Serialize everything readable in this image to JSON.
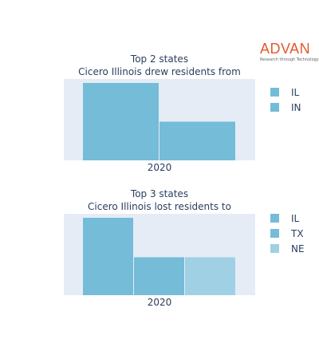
{
  "logo": {
    "name": "ADVAN",
    "tagline": "Research through Technology"
  },
  "colors": {
    "plot_bg": "#e5ecf6",
    "IL": "#74bcd8",
    "IN": "#74bcd8",
    "TX": "#74bcd8",
    "NE": "#9fd0e3"
  },
  "chart_data": [
    {
      "type": "bar",
      "title": [
        "Top 2 states",
        "Cicero Illinois drew residents from"
      ],
      "categories": [
        "2020"
      ],
      "series": [
        {
          "name": "IL",
          "values": [
            100
          ]
        },
        {
          "name": "IN",
          "values": [
            50
          ]
        }
      ],
      "legend": "right",
      "yaxis_visible": false
    },
    {
      "type": "bar",
      "title": [
        "Top 3 states",
        "Cicero Illinois lost residents to"
      ],
      "categories": [
        "2020"
      ],
      "series": [
        {
          "name": "IL",
          "values": [
            100
          ]
        },
        {
          "name": "TX",
          "values": [
            49
          ]
        },
        {
          "name": "NE",
          "values": [
            49
          ]
        }
      ],
      "legend": "right",
      "yaxis_visible": false
    }
  ]
}
